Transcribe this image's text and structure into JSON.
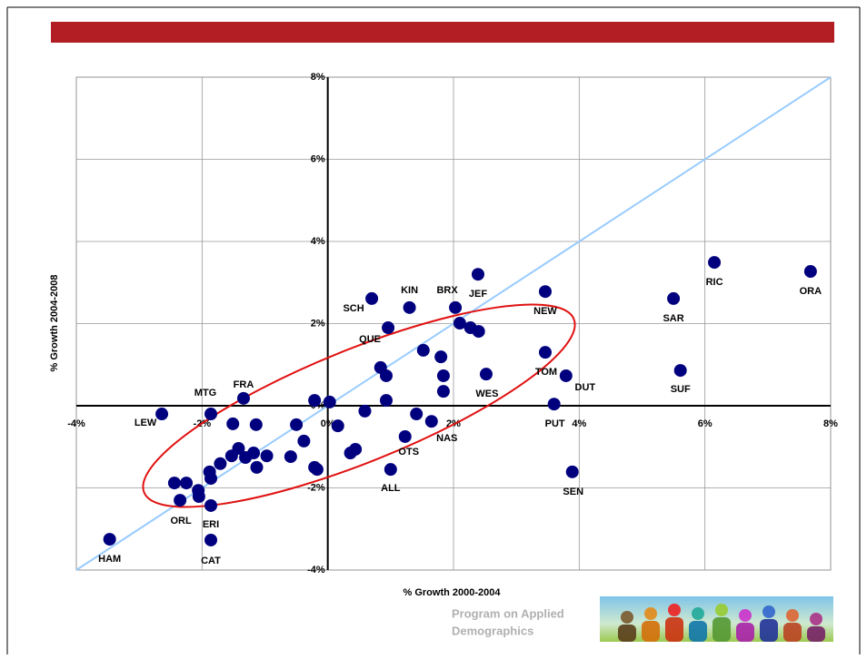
{
  "chart_data": {
    "type": "scatter",
    "x_label": "% Growth 2000-2004",
    "y_label": "% Growth 2004-2008",
    "xlim": [
      -4,
      8
    ],
    "ylim": [
      -4,
      8
    ],
    "xticks": [
      {
        "value": -4,
        "label": "-4%"
      },
      {
        "value": -2,
        "label": "-2%"
      },
      {
        "value": 0,
        "label": "0%"
      },
      {
        "value": 2,
        "label": "2%"
      },
      {
        "value": 4,
        "label": "4%"
      },
      {
        "value": 6,
        "label": "6%"
      },
      {
        "value": 8,
        "label": "8%"
      }
    ],
    "yticks": [
      {
        "value": -4,
        "label": "-4%"
      },
      {
        "value": -2,
        "label": "-2%"
      },
      {
        "value": 0,
        "label": "0%"
      },
      {
        "value": 2,
        "label": "2%"
      },
      {
        "value": 4,
        "label": "4%"
      },
      {
        "value": 6,
        "label": "6%"
      },
      {
        "value": 8,
        "label": "8%"
      }
    ],
    "grid": true,
    "color": "#00007f",
    "reference_color": "#99ccff",
    "x": [
      -3.47,
      -2.64,
      -1.86,
      -1.34,
      -2.35,
      -1.86,
      -1.86,
      0.7,
      1.3,
      2.03,
      2.39,
      0.96,
      3.46,
      5.5,
      6.15,
      7.68,
      5.61,
      3.46,
      3.79,
      2.52,
      3.6,
      3.89,
      1.65,
      1.23,
      1.0,
      2.1,
      2.27,
      2.4,
      1.52,
      1.8,
      0.84,
      0.93,
      1.84,
      1.84,
      0.93,
      -0.21,
      0.03,
      0.16,
      0.59,
      1.41,
      -0.5,
      -0.38,
      -0.59,
      -0.21,
      -0.17,
      0.36,
      0.44,
      -1.51,
      -1.14,
      -1.42,
      -1.53,
      -1.31,
      -1.18,
      -1.13,
      -0.97,
      -1.71,
      -1.88,
      -1.86,
      -2.06,
      -2.05,
      -2.25,
      -2.44
    ],
    "y": [
      -3.25,
      -0.2,
      -0.2,
      0.18,
      -2.3,
      -2.43,
      -3.27,
      2.61,
      2.39,
      2.39,
      3.2,
      1.9,
      2.78,
      2.61,
      3.49,
      3.27,
      0.86,
      1.3,
      0.73,
      0.77,
      0.04,
      -1.61,
      -0.38,
      -0.75,
      -1.55,
      2.01,
      1.9,
      1.81,
      1.35,
      1.19,
      0.93,
      0.73,
      0.73,
      0.35,
      0.13,
      0.13,
      0.09,
      -0.49,
      -0.13,
      -0.2,
      -0.46,
      -0.86,
      -1.24,
      -1.5,
      -1.55,
      -1.15,
      -1.06,
      -0.44,
      -0.46,
      -1.04,
      -1.22,
      -1.26,
      -1.15,
      -1.5,
      -1.22,
      -1.41,
      -1.61,
      -1.77,
      -2.06,
      -2.21,
      -1.88,
      -1.88
    ],
    "labels": [
      "HAM",
      "LEW",
      "MTG",
      "FRA",
      "ORL",
      "ERI",
      "CAT",
      "SCH",
      "KIN",
      "BRX",
      "JEF",
      "QUE",
      "NEW",
      "SAR",
      "RIC",
      "ORA",
      "SUF",
      "TOM",
      "DUT",
      "WES",
      "PUT",
      "SEN",
      "NAS",
      "OTS",
      "ALL",
      null,
      null,
      null,
      null,
      null,
      null,
      null,
      null,
      null,
      null,
      null,
      null,
      null,
      null,
      null,
      null,
      null,
      null,
      null,
      null,
      null,
      null,
      null,
      null,
      null,
      null,
      null,
      null,
      null,
      null,
      null,
      null,
      null,
      null,
      null,
      null,
      null
    ]
  },
  "footer": {
    "lines": [
      "Program on Applied",
      "Demographics"
    ]
  }
}
